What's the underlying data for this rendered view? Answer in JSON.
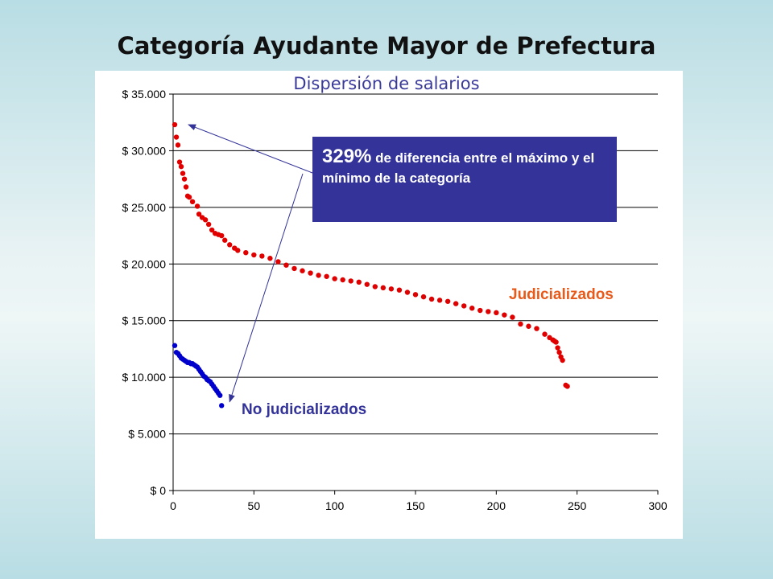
{
  "slide": {
    "title": "Categoría Ayudante Mayor de Prefectura"
  },
  "callout": {
    "percent": "329%",
    "text": " de diferencia entre el máximo y el mínimo de la categoría"
  },
  "chart_data": {
    "type": "scatter",
    "title": "Dispersión de salarios",
    "xlim": [
      0,
      300
    ],
    "ylim": [
      0,
      35000
    ],
    "x_ticks": [
      "0",
      "50",
      "100",
      "150",
      "200",
      "250",
      "300"
    ],
    "y_ticks": [
      "$ 0",
      "$ 5.000",
      "$ 10.000",
      "$ 15.000",
      "$ 20.000",
      "$ 25.000",
      "$ 30.000",
      "$ 35.000"
    ],
    "grid": true,
    "colors": {
      "judicializados": "#e00000",
      "no_judicializados": "#0000cc",
      "annotation": "#333399"
    },
    "series": [
      {
        "name": "Judicializados",
        "x": [
          1,
          2,
          3,
          4,
          5,
          6,
          7,
          8,
          9,
          10,
          12,
          15,
          16,
          18,
          20,
          22,
          24,
          26,
          28,
          30,
          32,
          35,
          38,
          40,
          45,
          50,
          55,
          60,
          65,
          70,
          75,
          80,
          85,
          90,
          95,
          100,
          105,
          110,
          115,
          120,
          125,
          130,
          135,
          140,
          145,
          150,
          155,
          160,
          165,
          170,
          175,
          180,
          185,
          190,
          195,
          200,
          205,
          210,
          215,
          220,
          225,
          230,
          233,
          235,
          236,
          237,
          238,
          239,
          240,
          241,
          243,
          244
        ],
        "y": [
          32300,
          31200,
          30500,
          29000,
          28600,
          28000,
          27500,
          26800,
          26000,
          25900,
          25500,
          25100,
          24400,
          24100,
          23900,
          23500,
          23000,
          22700,
          22600,
          22500,
          22100,
          21700,
          21400,
          21200,
          21000,
          20800,
          20700,
          20500,
          20200,
          19900,
          19600,
          19400,
          19200,
          19000,
          18900,
          18700,
          18600,
          18500,
          18400,
          18200,
          18000,
          17900,
          17800,
          17700,
          17500,
          17300,
          17100,
          16900,
          16800,
          16700,
          16500,
          16300,
          16100,
          15900,
          15800,
          15700,
          15500,
          15300,
          14700,
          14500,
          14300,
          13800,
          13500,
          13300,
          13200,
          13100,
          12600,
          12200,
          11800,
          11500,
          9300,
          9200
        ]
      },
      {
        "name": "No judicializados",
        "x": [
          1,
          2,
          3,
          4,
          5,
          6,
          7,
          8,
          9,
          10,
          11,
          12,
          13,
          14,
          15,
          16,
          17,
          18,
          19,
          20,
          21,
          22,
          23,
          24,
          25,
          26,
          27,
          28,
          29,
          30
        ],
        "y": [
          12800,
          12200,
          12100,
          11900,
          11700,
          11600,
          11500,
          11400,
          11300,
          11300,
          11200,
          11200,
          11100,
          11000,
          10900,
          10700,
          10500,
          10300,
          10100,
          10000,
          9800,
          9700,
          9600,
          9400,
          9200,
          9000,
          8800,
          8600,
          8400,
          7500
        ]
      }
    ]
  }
}
